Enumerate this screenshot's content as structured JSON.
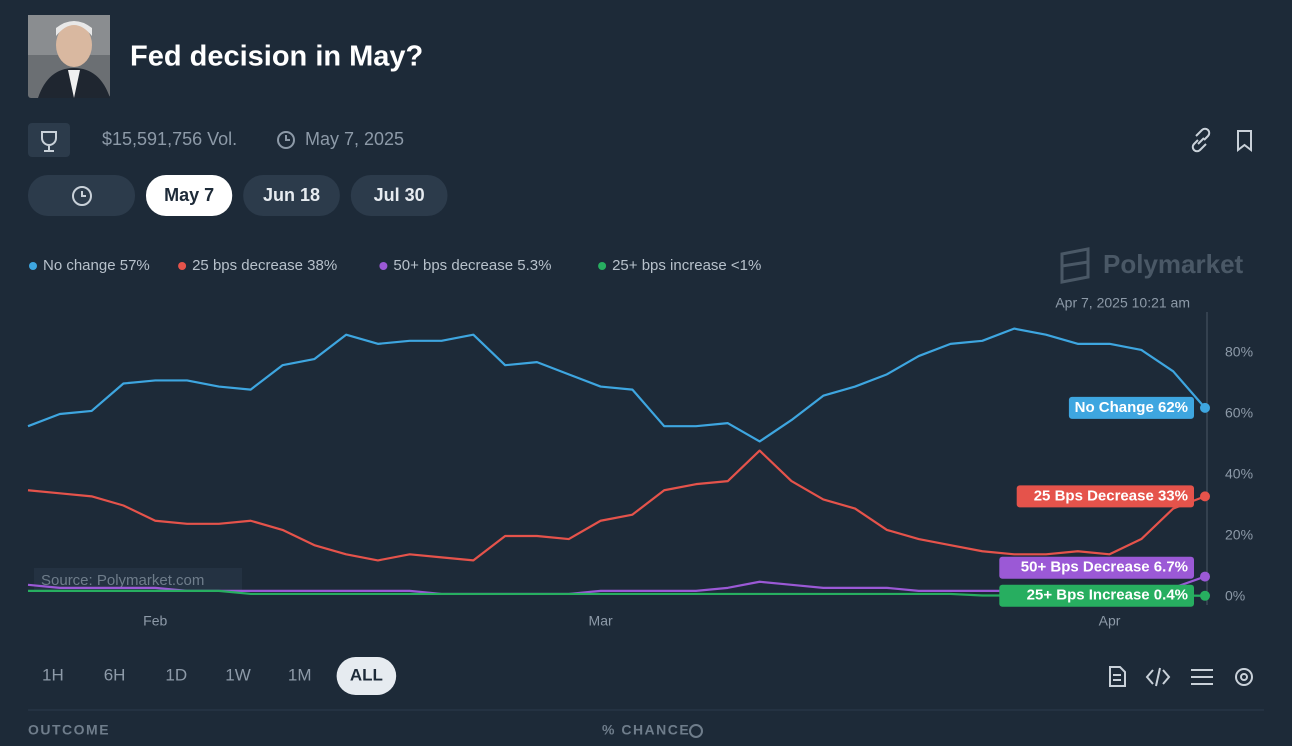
{
  "header": {
    "title": "Fed decision in May?",
    "volume": "$15,591,756 Vol.",
    "date": "May 7, 2025"
  },
  "date_tabs": [
    "May 7",
    "Jun 18",
    "Jul 30"
  ],
  "brand": "Polymarket",
  "chart_data": {
    "type": "line",
    "hover_label": "Apr 7, 2025 10:21 am",
    "source": "Source: Polymarket.com",
    "categories": [
      null,
      null,
      null,
      null,
      "Feb",
      null,
      null,
      null,
      null,
      null,
      null,
      null,
      null,
      null,
      null,
      null,
      null,
      null,
      "Mar",
      null,
      null,
      null,
      null,
      null,
      null,
      null,
      null,
      null,
      null,
      null,
      null,
      null,
      null,
      null,
      "Apr",
      null,
      null,
      null
    ],
    "series": [
      {
        "name": "No change 57%",
        "end_label": "No Change 62%",
        "color": "#3ea6e0",
        "values": [
          56,
          60,
          61,
          70,
          71,
          71,
          69,
          68,
          76,
          78,
          86,
          83,
          84,
          84,
          86,
          76,
          77,
          73,
          69,
          68,
          56,
          56,
          57,
          51,
          58,
          66,
          69,
          73,
          79,
          83,
          84,
          88,
          86,
          83,
          83,
          81,
          74,
          62
        ]
      },
      {
        "name": "25 bps decrease 38%",
        "end_label": "25 Bps Decrease 33%",
        "color": "#e5534b",
        "values": [
          35,
          34,
          33,
          30,
          25,
          24,
          24,
          25,
          22,
          17,
          14,
          12,
          14,
          13,
          12,
          20,
          20,
          19,
          25,
          27,
          35,
          37,
          38,
          48,
          38,
          32,
          29,
          22,
          19,
          17,
          15,
          14,
          14,
          15,
          14,
          19,
          29,
          33
        ]
      },
      {
        "name": "50+ bps decrease 5.3%",
        "end_label": "50+ Bps Decrease 6.7%",
        "color": "#9b59d6",
        "values": [
          4,
          3,
          3,
          3,
          3,
          2,
          2,
          2,
          2,
          2,
          2,
          2,
          2,
          1,
          1,
          1,
          1,
          1,
          2,
          2,
          2,
          2,
          3,
          5,
          4,
          3,
          3,
          3,
          2,
          2,
          2,
          2,
          2,
          2,
          2,
          2,
          3,
          6.7
        ]
      },
      {
        "name": "25+ bps increase <1%",
        "end_label": "25+ Bps Increase 0.4%",
        "color": "#27ae60",
        "values": [
          2,
          2,
          2,
          2,
          2,
          2,
          2,
          1,
          1,
          1,
          1,
          1,
          1,
          1,
          1,
          1,
          1,
          1,
          1,
          1,
          1,
          1,
          1,
          1,
          1,
          1,
          1,
          1,
          1,
          1,
          0.5,
          0.5,
          0.5,
          0.5,
          0.5,
          0.5,
          0.5,
          0.4
        ]
      }
    ],
    "ylim": [
      0,
      100
    ],
    "yticks": [
      {
        "value": 0,
        "label": "0%"
      },
      {
        "value": 20,
        "label": "20%"
      },
      {
        "value": 40,
        "label": "40%"
      },
      {
        "value": 60,
        "label": "60%"
      },
      {
        "value": 80,
        "label": "80%"
      }
    ],
    "grid": false
  },
  "range_buttons": [
    "1H",
    "6H",
    "1D",
    "1W",
    "1M",
    "ALL"
  ],
  "table_header": {
    "outcome": "OUTCOME",
    "chance": "% CHANCE"
  }
}
